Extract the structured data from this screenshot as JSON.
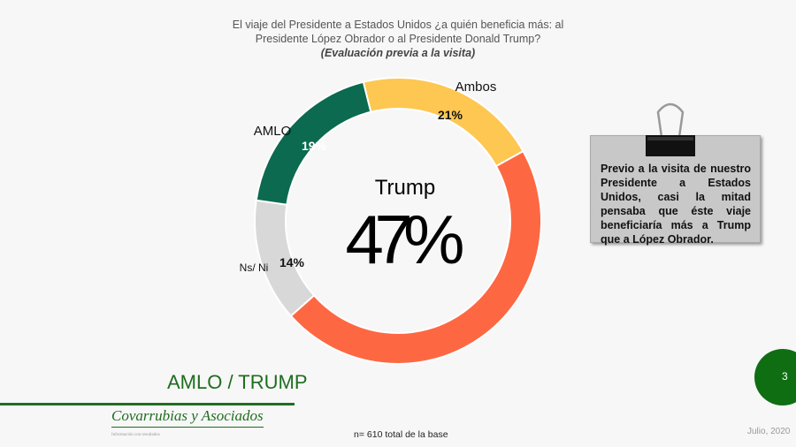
{
  "header": {
    "title": "El viaje del Presidente a Estados Unidos ¿a quién beneficia más: al Presidente López Obrador o al Presidente Donald Trump?",
    "subtitle": "(Evaluación previa a la visita)"
  },
  "chart_data": {
    "type": "pie",
    "donut": true,
    "title": "El viaje del Presidente a Estados Unidos ¿a quién beneficia más: al Presidente López Obrador o al Presidente Donald Trump?",
    "subtitle": "(Evaluación previa a la visita)",
    "categories": [
      "Ambos",
      "Trump",
      "Ns/ Ni",
      "AMLO"
    ],
    "values": [
      21,
      47,
      14,
      19
    ],
    "labels": [
      "21%",
      "47%",
      "14%",
      "19%"
    ],
    "colors": [
      "#fdc752",
      "#fd6843",
      "#d8d8d8",
      "#0b6a4f"
    ],
    "center_label": "Trump",
    "center_value": "47%"
  },
  "note": {
    "text": "Previo a la visita de nuestro Presidente a Estados Unidos, casi la mitad pensaba que éste viaje beneficiaría más a Trump que a López Obrador."
  },
  "footer": {
    "section": "AMLO / TRUMP",
    "logo": "Covarrubias y Asociados",
    "logo_tagline": "Información con resultados",
    "base": "n= 610 total de la base",
    "date": "Julio, 2020",
    "page": "3"
  }
}
